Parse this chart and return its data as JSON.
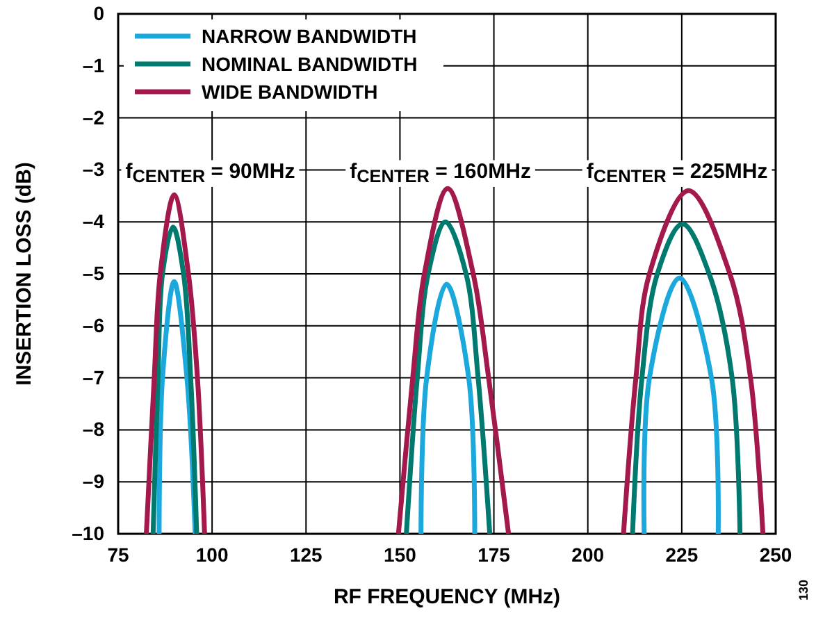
{
  "chart_data": {
    "type": "line",
    "xlabel": "RF FREQUENCY (MHz)",
    "ylabel": "INSERTION LOSS (dB)",
    "xlim": [
      75,
      250
    ],
    "ylim": [
      -10,
      0
    ],
    "xticks": [
      75,
      100,
      125,
      150,
      175,
      200,
      225,
      250
    ],
    "yticks": [
      0,
      {
        "value": -1,
        "label": "–1"
      },
      {
        "value": -2,
        "label": "–2"
      },
      {
        "value": -3,
        "label": "–3"
      },
      {
        "value": -4,
        "label": "–4"
      },
      {
        "value": -5,
        "label": "–5"
      },
      {
        "value": -6,
        "label": "–6"
      },
      {
        "value": -7,
        "label": "–7"
      },
      {
        "value": -8,
        "label": "–8"
      },
      {
        "value": -9,
        "label": "–9"
      },
      {
        "value": -10,
        "label": "–10"
      }
    ],
    "grid": true,
    "legend": "top left",
    "line_style": "solid",
    "marker": "none",
    "series": [
      {
        "name": "NARROW BANDWIDTH",
        "color": "#1ba8dc",
        "x": [
          85.9,
          86.8,
          89.9,
          93.3,
          95.5,
          120,
          155.6,
          157.1,
          162.4,
          168.3,
          169.9,
          195,
          215,
          216.4,
          224.4,
          232.9,
          234.7
        ],
        "values": [
          -10,
          -7,
          -5.15,
          -7,
          -10,
          null,
          -10,
          -7,
          -5.2,
          -7,
          -10,
          null,
          -10,
          -7,
          -5.08,
          -7,
          -10
        ]
      },
      {
        "name": "NOMINAL BANDWIDTH",
        "color": "#00796f",
        "x": [
          84.3,
          85.6,
          86.8,
          89.6,
          92.4,
          94.3,
          95.9,
          120,
          151.7,
          154.6,
          157.5,
          162.1,
          167.6,
          170.8,
          173.9,
          195,
          211.9,
          214.4,
          218.5,
          225.2,
          232.3,
          238.4,
          240.5
        ],
        "values": [
          -10,
          -7,
          -5,
          -4.1,
          -5,
          -7,
          -10,
          null,
          -10,
          -7,
          -5,
          -4.0,
          -5,
          -7,
          -10,
          null,
          -10,
          -7,
          -5,
          -4.04,
          -5,
          -7,
          -10
        ]
      },
      {
        "name": "WIDE BANDWIDTH",
        "color": "#a3194b",
        "x": [
          82.5,
          84.6,
          86.2,
          89.9,
          93.7,
          96.1,
          98,
          120,
          149.6,
          153.4,
          156.5,
          162.7,
          169.5,
          173.6,
          178.9,
          195,
          209.5,
          212.8,
          216.4,
          226.8,
          237.8,
          243.3,
          246.6
        ],
        "values": [
          -10,
          -7,
          -5,
          -3.48,
          -5,
          -7,
          -10,
          null,
          -10,
          -7,
          -5,
          -3.36,
          -5,
          -7,
          -10,
          null,
          -10,
          -7,
          -5,
          -3.4,
          -5,
          -7,
          -10
        ]
      }
    ],
    "annotations": [
      "f$_{CENTER}$ = 90MHz",
      "f$_{CENTER}$ = 160MHz",
      "f$_{CENTER}$ = 225MHz",
      "130"
    ]
  }
}
